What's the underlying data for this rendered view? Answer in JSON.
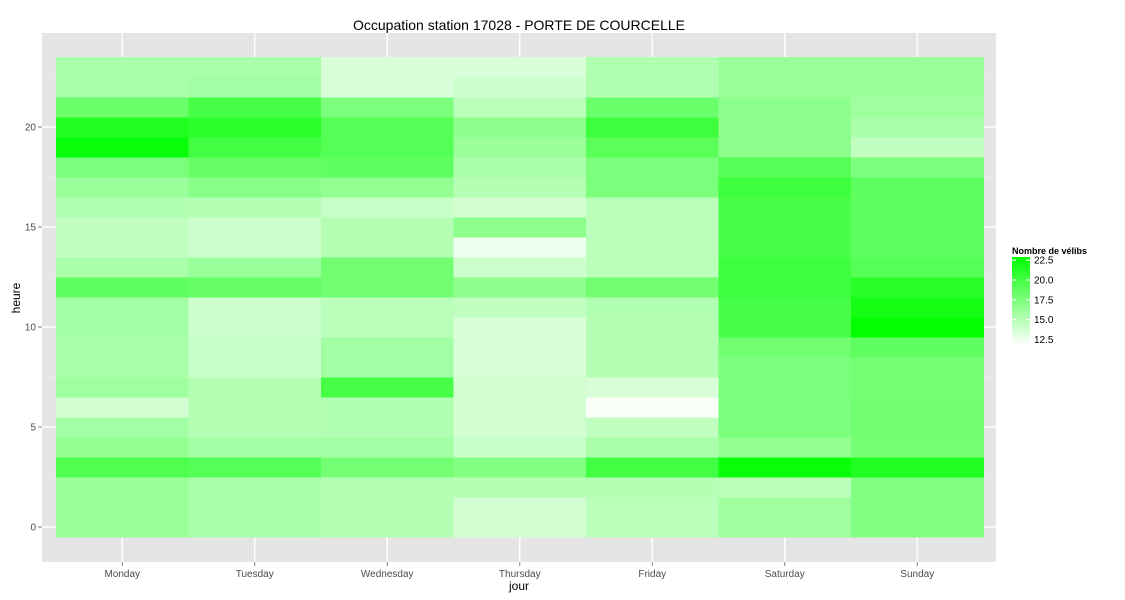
{
  "chart_data": {
    "type": "heatmap",
    "title": "Occupation station 17028 - PORTE DE COURCELLE",
    "xlabel": "jour",
    "ylabel": "heure",
    "categories": [
      "Monday",
      "Tuesday",
      "Wednesday",
      "Thursday",
      "Friday",
      "Saturday",
      "Sunday"
    ],
    "hours": [
      0,
      1,
      2,
      3,
      4,
      5,
      6,
      7,
      8,
      9,
      10,
      11,
      12,
      13,
      14,
      15,
      16,
      17,
      18,
      19,
      20,
      21,
      22,
      23
    ],
    "y_ticks": [
      0,
      5,
      10,
      15,
      20
    ],
    "ylim": [
      -0.5,
      23.5
    ],
    "grid": true,
    "values": [
      [
        16.2,
        15.5,
        15.0,
        13.8,
        14.8,
        16.0,
        17.2
      ],
      [
        16.2,
        15.5,
        15.0,
        13.8,
        14.8,
        16.0,
        17.2
      ],
      [
        16.2,
        15.5,
        15.0,
        15.0,
        15.0,
        14.8,
        17.2
      ],
      [
        19.5,
        19.2,
        17.8,
        17.2,
        20.0,
        22.5,
        21.5
      ],
      [
        16.5,
        15.8,
        15.8,
        14.2,
        15.5,
        16.5,
        17.8
      ],
      [
        15.8,
        15.0,
        15.2,
        13.8,
        14.5,
        17.5,
        18.0
      ],
      [
        13.8,
        15.0,
        15.2,
        13.8,
        12.0,
        17.5,
        18.0
      ],
      [
        16.0,
        15.0,
        19.8,
        13.8,
        13.5,
        17.5,
        17.8
      ],
      [
        15.5,
        14.2,
        15.8,
        13.5,
        15.0,
        17.5,
        17.8
      ],
      [
        15.5,
        14.2,
        15.8,
        13.5,
        15.0,
        18.0,
        18.8
      ],
      [
        15.8,
        14.0,
        14.8,
        13.5,
        15.0,
        19.8,
        22.8
      ],
      [
        15.8,
        14.0,
        14.8,
        14.5,
        15.2,
        19.8,
        22.0
      ],
      [
        18.8,
        18.5,
        18.0,
        16.8,
        18.0,
        20.2,
        21.2
      ],
      [
        15.5,
        16.2,
        18.0,
        14.0,
        14.8,
        20.2,
        19.2
      ],
      [
        14.5,
        14.0,
        15.0,
        12.5,
        14.8,
        19.8,
        18.8
      ],
      [
        14.5,
        14.0,
        15.0,
        16.8,
        14.8,
        19.8,
        18.8
      ],
      [
        15.2,
        15.0,
        14.2,
        13.8,
        14.8,
        19.8,
        18.8
      ],
      [
        16.2,
        17.0,
        16.5,
        15.0,
        17.5,
        20.2,
        18.8
      ],
      [
        17.5,
        18.5,
        18.8,
        15.5,
        17.5,
        19.2,
        17.5
      ],
      [
        22.5,
        20.0,
        19.2,
        16.2,
        19.0,
        16.8,
        14.5
      ],
      [
        21.5,
        21.0,
        19.2,
        16.8,
        20.2,
        16.8,
        15.5
      ],
      [
        18.2,
        19.8,
        17.5,
        14.8,
        18.2,
        16.8,
        16.0
      ],
      [
        15.5,
        15.8,
        13.5,
        14.0,
        15.2,
        16.2,
        16.2
      ],
      [
        15.5,
        15.5,
        13.5,
        13.5,
        15.2,
        16.2,
        16.2
      ]
    ],
    "legend": {
      "title": "Nombre de vélibs",
      "position": "right",
      "ticks": [
        22.5,
        20.0,
        17.5,
        15.0,
        12.5
      ],
      "min": 11.8,
      "max": 22.9,
      "color_low": "#ffffff",
      "color_high": "#00ff00"
    },
    "panel_color": "#e5e5e5",
    "grid_color": "#ffffff"
  }
}
